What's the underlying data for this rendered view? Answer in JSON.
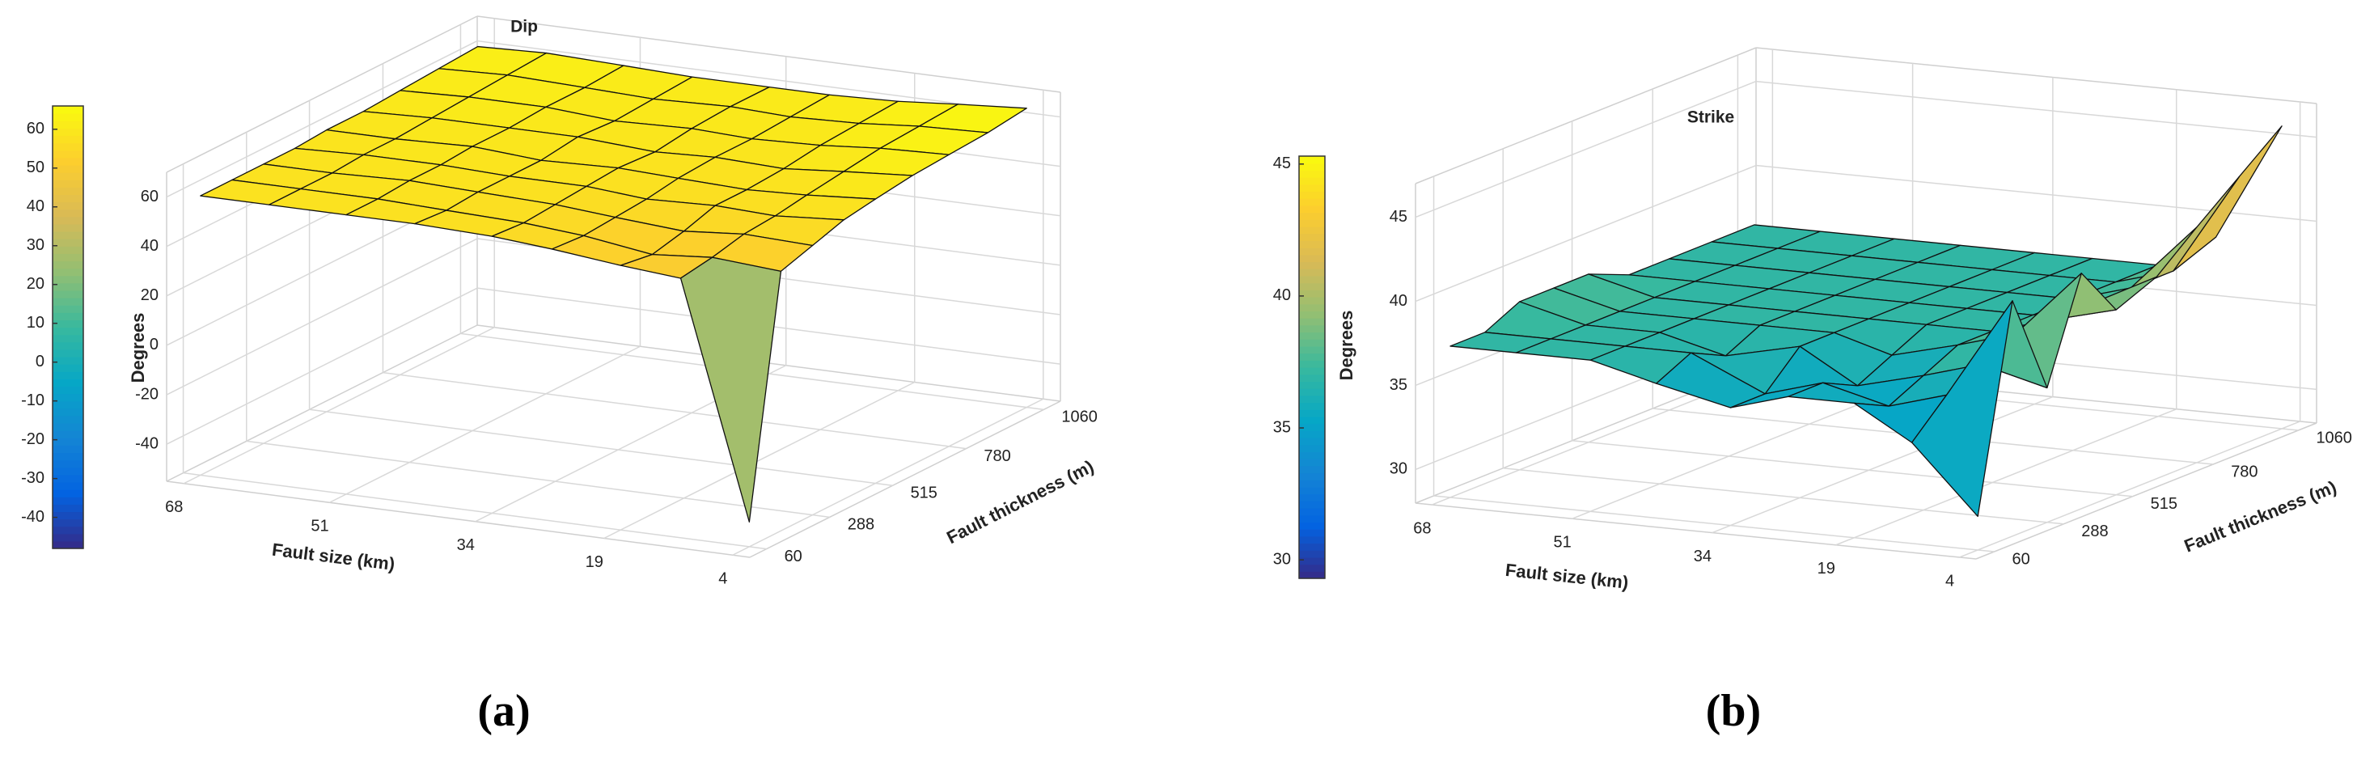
{
  "figure": {
    "captions": [
      "(a)",
      "(b)"
    ]
  },
  "chart_data": [
    {
      "type": "surface",
      "title": "Dip",
      "xlabel": "Fault size (km)",
      "ylabel": "Fault thickness (m)",
      "zlabel": "Degrees",
      "colormap": "parula",
      "grid": true,
      "x": [
        4,
        12,
        19,
        27,
        34,
        43,
        51,
        60,
        68
      ],
      "y": [
        60,
        174,
        288,
        401,
        515,
        648,
        780,
        920,
        1060
      ],
      "z": [
        [
          -45,
          50,
          52,
          55,
          57,
          58,
          58,
          58,
          58
        ],
        [
          50,
          52,
          50,
          54,
          56,
          57,
          58,
          58,
          58
        ],
        [
          54,
          55,
          53,
          55,
          57,
          58,
          59,
          58,
          58
        ],
        [
          58,
          56,
          57,
          56,
          58,
          58,
          59,
          59,
          58
        ],
        [
          60,
          58,
          57,
          58,
          59,
          58,
          60,
          59,
          59
        ],
        [
          62,
          60,
          58,
          59,
          58,
          60,
          60,
          60,
          59
        ],
        [
          63,
          62,
          60,
          59,
          60,
          59,
          61,
          61,
          60
        ],
        [
          64,
          63,
          61,
          60,
          61,
          60,
          61,
          62,
          61
        ],
        [
          66,
          64,
          62,
          61,
          61,
          61,
          62,
          63,
          62
        ]
      ],
      "xlim": [
        2,
        70
      ],
      "ylim": [
        0,
        1120
      ],
      "zlim": [
        -55,
        70
      ],
      "xticks": [
        4,
        19,
        34,
        51,
        68
      ],
      "yticks": [
        60,
        288,
        515,
        780,
        1060
      ],
      "zticks": [
        -40,
        -20,
        0,
        20,
        40,
        60
      ],
      "clim": [
        -48,
        66
      ],
      "cticks": [
        -40,
        -30,
        -20,
        -10,
        0,
        10,
        20,
        30,
        40,
        50,
        60
      ]
    },
    {
      "type": "surface",
      "title": "Strike",
      "xlabel": "Fault size (km)",
      "ylabel": "Fault thickness (m)",
      "zlabel": "Degrees",
      "colormap": "parula",
      "grid": true,
      "x": [
        4,
        12,
        19,
        27,
        34,
        43,
        51,
        60,
        68
      ],
      "y": [
        60,
        174,
        288,
        401,
        515,
        648,
        780,
        920,
        1060
      ],
      "z": [
        [
          30,
          34,
          36,
          36,
          35,
          36,
          37,
          37,
          37
        ],
        [
          42,
          36,
          35,
          36,
          35,
          37,
          37,
          37,
          37
        ],
        [
          36,
          37,
          36,
          35,
          37,
          36,
          37,
          37,
          38
        ],
        [
          42,
          38,
          37,
          36,
          37,
          37,
          37,
          37,
          38
        ],
        [
          39,
          38,
          37,
          37,
          37,
          37,
          37,
          37,
          38
        ],
        [
          40,
          38,
          37,
          37,
          37,
          37,
          37,
          37,
          37
        ],
        [
          42,
          38,
          37,
          37,
          37,
          37,
          37,
          37,
          37
        ],
        [
          44,
          38,
          37,
          37,
          37,
          37,
          37,
          37,
          37
        ],
        [
          46,
          39,
          37,
          37,
          37,
          37,
          37,
          37,
          37
        ]
      ],
      "xlim": [
        2,
        70
      ],
      "ylim": [
        0,
        1120
      ],
      "zlim": [
        28,
        47
      ],
      "xticks": [
        4,
        19,
        34,
        51,
        68
      ],
      "yticks": [
        60,
        288,
        515,
        780,
        1060
      ],
      "zticks": [
        30,
        35,
        40,
        45
      ],
      "clim": [
        29.3,
        45.3
      ],
      "cticks": [
        30,
        35,
        40,
        45
      ]
    }
  ]
}
